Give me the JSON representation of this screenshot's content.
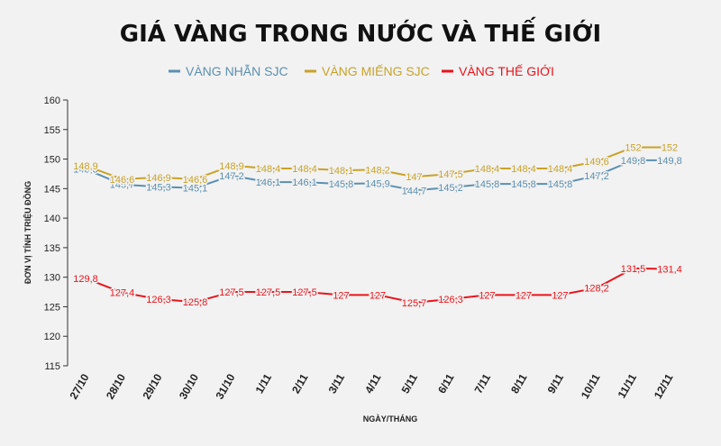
{
  "chart_data": {
    "type": "line",
    "title": "GIÁ VÀNG TRONG NƯỚC VÀ THẾ GIỚI",
    "xlabel": "NGÀY/THÁNG",
    "ylabel": "ĐƠN VỊ TÍNH TRIỆU ĐỒNG",
    "ylim": [
      115,
      160
    ],
    "yticks": [
      "115",
      "120",
      "125",
      "130",
      "135",
      "140",
      "145",
      "150",
      "155",
      "160"
    ],
    "categories": [
      "27/10",
      "28/10",
      "29/10",
      "30/10",
      "31/10",
      "1/11",
      "2/11",
      "3/11",
      "4/11",
      "5/11",
      "6/11",
      "7/11",
      "8/11",
      "9/11",
      "10/11",
      "11/11",
      "12/11"
    ],
    "legend_position": "top",
    "grid": false,
    "series": [
      {
        "name": "VÀNG NHẪN SJC",
        "color": "#5b8fb0",
        "values": [
          148.3,
          145.7,
          145.3,
          145.1,
          147.2,
          146.1,
          146.1,
          145.8,
          145.9,
          144.7,
          145.2,
          145.8,
          145.8,
          145.8,
          147.2,
          149.8,
          149.8
        ],
        "labels": [
          "148,3",
          "145,7",
          "145,3",
          "145,1",
          "147,2",
          "146,1",
          "146,1",
          "145,8",
          "145,9",
          "144,7",
          "145,2",
          "145,8",
          "145,8",
          "145,8",
          "147,2",
          "149,8",
          "149,8"
        ]
      },
      {
        "name": "VÀNG MIẾNG SJC",
        "color": "#c9a227",
        "values": [
          148.9,
          146.6,
          146.9,
          146.6,
          148.9,
          148.4,
          148.4,
          148.1,
          148.2,
          147.0,
          147.5,
          148.4,
          148.4,
          148.4,
          149.6,
          152.0,
          152.0
        ],
        "labels": [
          "148,9",
          "146,6",
          "146,9",
          "146,6",
          "148,9",
          "148,4",
          "148,4",
          "148,1",
          "148,2",
          "147",
          "147,5",
          "148,4",
          "148,4",
          "148,4",
          "149,6",
          "152",
          "152"
        ]
      },
      {
        "name": "VÀNG THẾ GIỚI",
        "color": "#e8141b",
        "values": [
          129.8,
          127.4,
          126.3,
          125.8,
          127.5,
          127.5,
          127.5,
          127.0,
          127.0,
          125.7,
          126.3,
          127.0,
          127.0,
          127.0,
          128.2,
          131.5,
          131.4
        ],
        "labels": [
          "129,8",
          "127,4",
          "126,3",
          "125,8",
          "127,5",
          "127,5",
          "127,5",
          "127",
          "127",
          "125,7",
          "126,3",
          "127",
          "127",
          "127",
          "128,2",
          "131,5",
          "131,4"
        ]
      }
    ]
  }
}
